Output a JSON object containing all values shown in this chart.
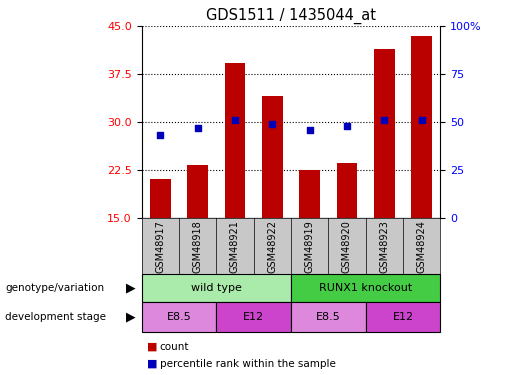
{
  "title": "GDS1511 / 1435044_at",
  "samples": [
    "GSM48917",
    "GSM48918",
    "GSM48921",
    "GSM48922",
    "GSM48919",
    "GSM48920",
    "GSM48923",
    "GSM48924"
  ],
  "count_values": [
    21.0,
    23.2,
    39.2,
    34.0,
    22.5,
    23.5,
    41.5,
    43.5
  ],
  "percentile_values": [
    43,
    47,
    51,
    49,
    46,
    48,
    51,
    51
  ],
  "ylim_left": [
    15,
    45
  ],
  "ylim_right": [
    0,
    100
  ],
  "yticks_left": [
    15,
    22.5,
    30,
    37.5,
    45
  ],
  "yticks_right": [
    0,
    25,
    50,
    75,
    100
  ],
  "bar_color": "#bb0000",
  "scatter_color": "#0000bb",
  "bar_width": 0.55,
  "genotype_groups": [
    {
      "label": "wild type",
      "start": 0,
      "end": 4,
      "color": "#aaeaaa"
    },
    {
      "label": "RUNX1 knockout",
      "start": 4,
      "end": 8,
      "color": "#44cc44"
    }
  ],
  "dev_stage_groups": [
    {
      "label": "E8.5",
      "start": 0,
      "end": 2,
      "color": "#dd88dd"
    },
    {
      "label": "E12",
      "start": 2,
      "end": 4,
      "color": "#cc44cc"
    },
    {
      "label": "E8.5",
      "start": 4,
      "end": 6,
      "color": "#dd88dd"
    },
    {
      "label": "E12",
      "start": 6,
      "end": 8,
      "color": "#cc44cc"
    }
  ],
  "legend_items": [
    {
      "label": "count",
      "color": "#bb0000"
    },
    {
      "label": "percentile rank within the sample",
      "color": "#0000bb"
    }
  ],
  "row_label_genotype": "genotype/variation",
  "row_label_devstage": "development stage",
  "background_color": "#ffffff"
}
